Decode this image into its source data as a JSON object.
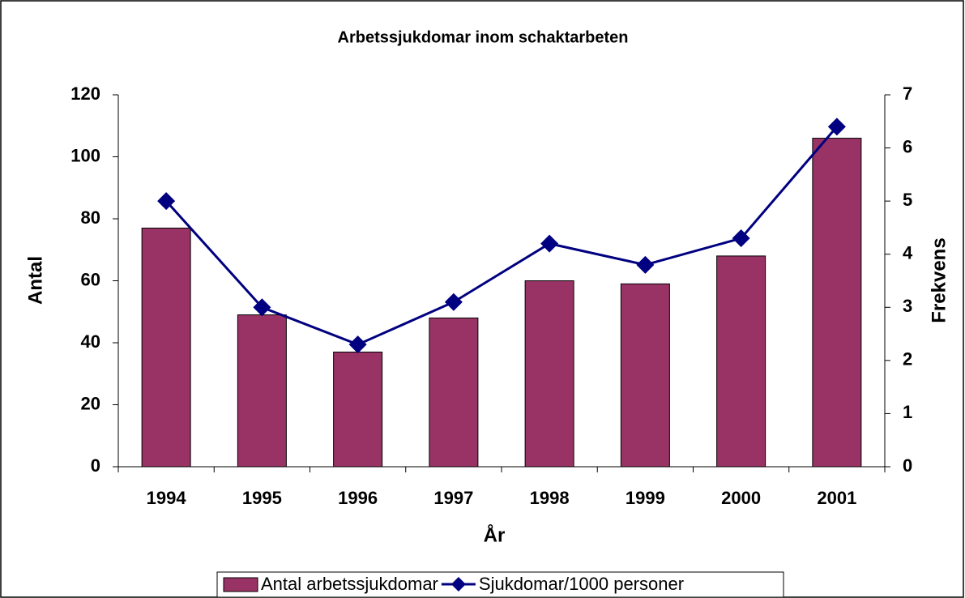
{
  "chart_data": {
    "type": "bar",
    "title": "Arbetssjukdomar inom schaktarbeten",
    "xlabel": "År",
    "ylabel": "Antal",
    "y2label": "Frekvens",
    "categories": [
      "1994",
      "1995",
      "1996",
      "1997",
      "1998",
      "1999",
      "2000",
      "2001"
    ],
    "series": [
      {
        "name": "Antal arbetssjukdomar",
        "type": "bar",
        "color": "#993366",
        "values": [
          77,
          49,
          37,
          48,
          60,
          59,
          68,
          106
        ]
      },
      {
        "name": "Sjukdomar/1000 personer",
        "type": "line",
        "axis": "y2",
        "color": "#000080",
        "values": [
          5.0,
          3.0,
          2.3,
          3.1,
          4.2,
          3.8,
          4.3,
          6.4
        ]
      }
    ],
    "ylim": [
      0,
      120
    ],
    "yticks": [
      0,
      20,
      40,
      60,
      80,
      100,
      120
    ],
    "y2lim": [
      0,
      7
    ],
    "y2ticks": [
      0,
      1,
      2,
      3,
      4,
      5,
      6,
      7
    ],
    "grid": false,
    "legend": "bottom"
  }
}
